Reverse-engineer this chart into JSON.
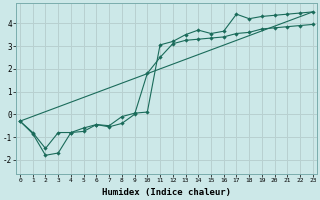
{
  "title": "",
  "xlabel": "Humidex (Indice chaleur)",
  "ylabel": "",
  "bg_color": "#cce8e8",
  "line_color": "#1a6b5a",
  "grid_color": "#b8d0d0",
  "x_ticks": [
    0,
    1,
    2,
    3,
    4,
    5,
    6,
    7,
    8,
    9,
    10,
    11,
    12,
    13,
    14,
    15,
    16,
    17,
    18,
    19,
    20,
    21,
    22,
    23
  ],
  "y_ticks": [
    -2,
    -1,
    0,
    1,
    2,
    3,
    4
  ],
  "xlim": [
    -0.3,
    23.3
  ],
  "ylim": [
    -2.6,
    4.9
  ],
  "series1_x": [
    0,
    1,
    2,
    3,
    4,
    5,
    6,
    7,
    8,
    9,
    10,
    11,
    12,
    13,
    14,
    15,
    16,
    17,
    18,
    19,
    20,
    21,
    22,
    23
  ],
  "series1_y": [
    -0.3,
    -0.8,
    -1.5,
    -0.8,
    -0.8,
    -0.6,
    -0.45,
    -0.5,
    -0.1,
    0.05,
    0.1,
    3.05,
    3.2,
    3.5,
    3.7,
    3.55,
    3.65,
    4.4,
    4.2,
    4.3,
    4.35,
    4.4,
    4.45,
    4.5
  ],
  "series2_x": [
    0,
    1,
    2,
    3,
    4,
    5,
    6,
    7,
    8,
    9,
    10,
    11,
    12,
    13,
    14,
    15,
    16,
    17,
    18,
    19,
    20,
    21,
    22,
    23
  ],
  "series2_y": [
    -0.3,
    -0.85,
    -1.8,
    -1.7,
    -0.8,
    -0.75,
    -0.45,
    -0.55,
    -0.4,
    0.0,
    1.8,
    2.5,
    3.1,
    3.25,
    3.3,
    3.35,
    3.4,
    3.55,
    3.6,
    3.75,
    3.8,
    3.85,
    3.9,
    3.95
  ],
  "series3_x": [
    0,
    23
  ],
  "series3_y": [
    -0.3,
    4.5
  ]
}
